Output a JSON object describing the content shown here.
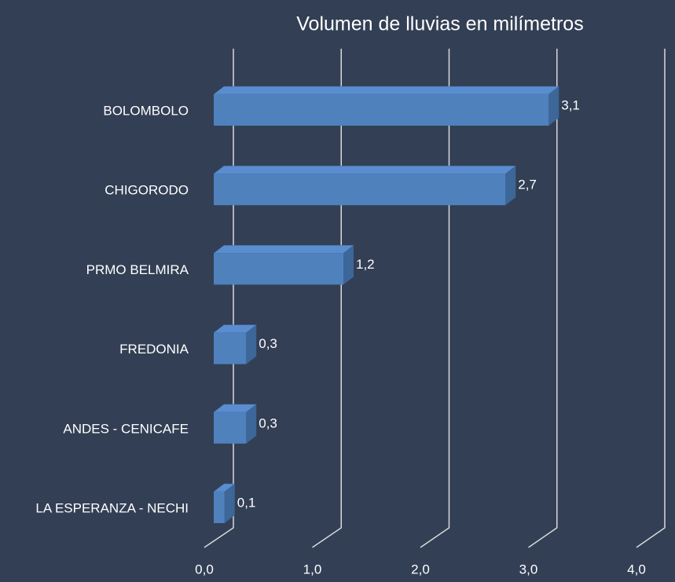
{
  "chart_data": {
    "type": "bar",
    "orientation": "horizontal",
    "three_d": true,
    "title": "Volumen de lluvias en milímetros",
    "categories": [
      "BOLOMBOLO",
      "CHIGORODO",
      "PRMO BELMIRA",
      "FREDONIA",
      "ANDES - CENICAFE",
      "LA ESPERANZA - NECHI"
    ],
    "values": [
      3.1,
      2.7,
      1.2,
      0.3,
      0.3,
      0.1
    ],
    "value_labels": [
      "3,1",
      "2,7",
      "1,2",
      "0,3",
      "0,3",
      "0,1"
    ],
    "color": "#4f81bd",
    "xlim": [
      0,
      4
    ],
    "xticks": [
      {
        "value": 0,
        "label": "0,0"
      },
      {
        "value": 1,
        "label": "1,0"
      },
      {
        "value": 2,
        "label": "2,0"
      },
      {
        "value": 3,
        "label": "3,0"
      },
      {
        "value": 4,
        "label": "4,0"
      }
    ],
    "grid": true
  }
}
